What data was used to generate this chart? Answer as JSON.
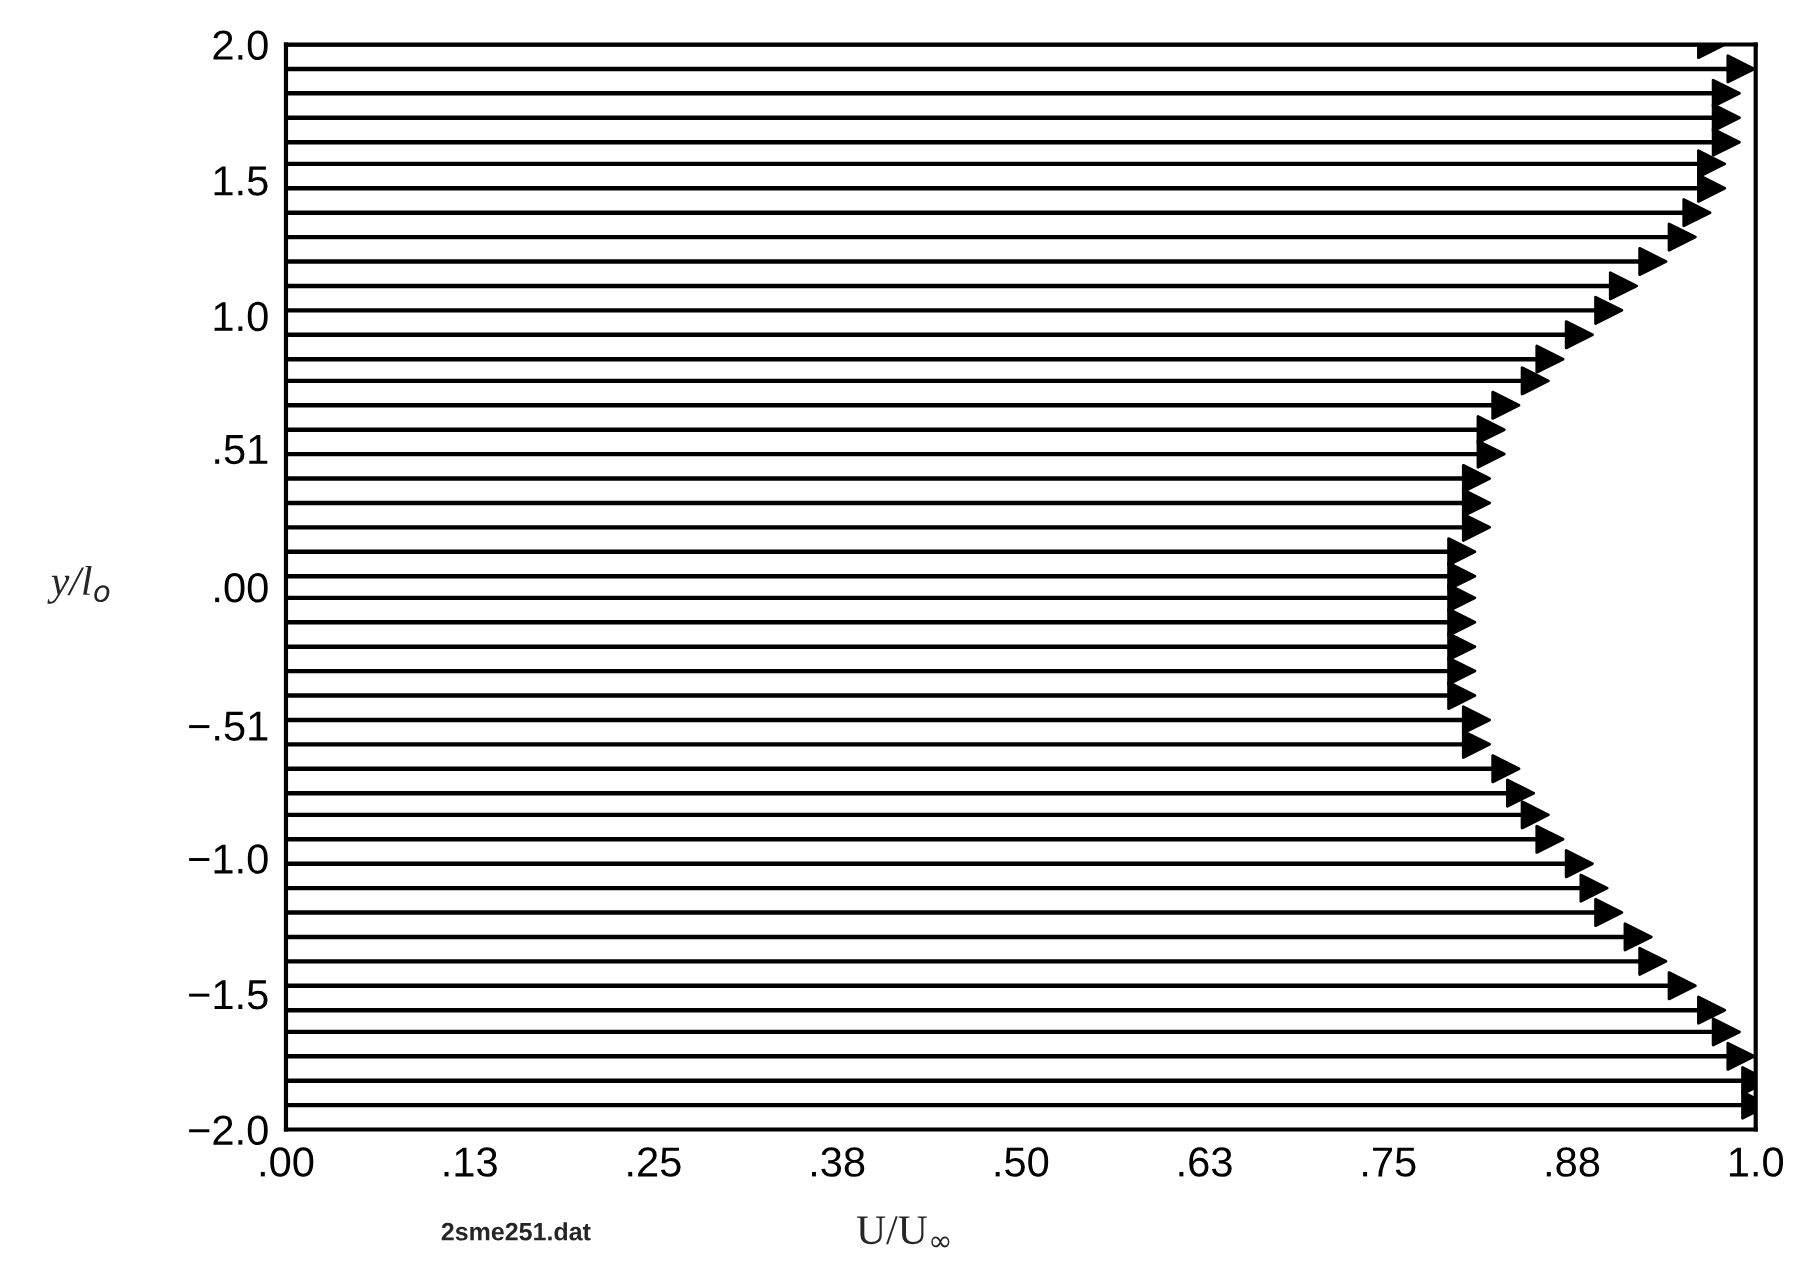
{
  "chart_data": {
    "type": "lollipop",
    "orientation": "horizontal",
    "marker": "triangle",
    "color": "#000000",
    "xlabel": "U/U$_{∞}$",
    "ylabel": "y/l$_{o}$",
    "annotations": [
      "2sme251.dat"
    ],
    "x": [
      2.0,
      1.91,
      1.82,
      1.73,
      1.64,
      1.56,
      1.47,
      1.38,
      1.29,
      1.2,
      1.11,
      1.02,
      0.93,
      0.84,
      0.76,
      0.67,
      0.58,
      0.49,
      0.4,
      0.31,
      0.22,
      0.13,
      0.04,
      -0.04,
      -0.13,
      -0.22,
      -0.31,
      -0.4,
      -0.49,
      -0.58,
      -0.67,
      -0.76,
      -0.84,
      -0.93,
      -1.02,
      -1.11,
      -1.2,
      -1.29,
      -1.38,
      -1.47,
      -1.56,
      -1.64,
      -1.73,
      -1.82,
      -1.91
    ],
    "values": [
      0.97,
      0.99,
      0.98,
      0.98,
      0.98,
      0.97,
      0.97,
      0.96,
      0.95,
      0.93,
      0.91,
      0.9,
      0.88,
      0.86,
      0.85,
      0.83,
      0.82,
      0.82,
      0.81,
      0.81,
      0.81,
      0.8,
      0.8,
      0.8,
      0.8,
      0.8,
      0.8,
      0.8,
      0.81,
      0.81,
      0.83,
      0.84,
      0.85,
      0.86,
      0.88,
      0.89,
      0.9,
      0.92,
      0.93,
      0.95,
      0.97,
      0.98,
      0.99,
      1.0,
      1.0
    ],
    "xlim": [
      0,
      1.0
    ],
    "xticks": [
      {
        "value": 0,
        "label": ".00"
      },
      {
        "value": 0.125,
        "label": ".13"
      },
      {
        "value": 0.25,
        "label": ".25"
      },
      {
        "value": 0.375,
        "label": ".38"
      },
      {
        "value": 0.5,
        "label": ".50"
      },
      {
        "value": 0.625,
        "label": ".63"
      },
      {
        "value": 0.75,
        "label": ".75"
      },
      {
        "value": 0.875,
        "label": ".88"
      },
      {
        "value": 1.0,
        "label": "1.0"
      }
    ],
    "ylim": [
      -2.0,
      2.0
    ],
    "yticks": [
      {
        "value": -2.0,
        "label": "−2.0"
      },
      {
        "value": -1.5,
        "label": "−1.5"
      },
      {
        "value": -1.0,
        "label": "−1.0"
      },
      {
        "value": -0.51,
        "label": "−.51"
      },
      {
        "value": 0,
        "label": ".00"
      },
      {
        "value": 0.51,
        "label": ".51"
      },
      {
        "value": 1.0,
        "label": "1.0"
      },
      {
        "value": 1.5,
        "label": "1.5"
      },
      {
        "value": 2.0,
        "label": "2.0"
      }
    ]
  }
}
